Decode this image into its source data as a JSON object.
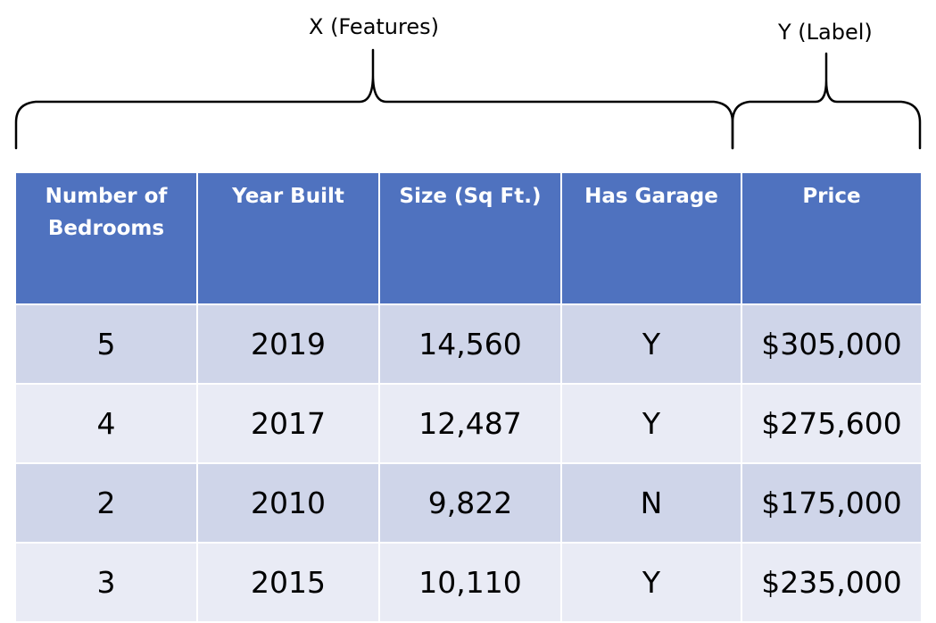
{
  "brackets": {
    "features_label": "X (Features)",
    "label_label": "Y (Label)"
  },
  "table": {
    "headers": [
      "Number of Bedrooms",
      "Year Built",
      "Size (Sq Ft.)",
      "Has Garage",
      "Price"
    ],
    "rows": [
      [
        "5",
        "2019",
        "14,560",
        "Y",
        "$305,000"
      ],
      [
        "4",
        "2017",
        "12,487",
        "Y",
        "$275,600"
      ],
      [
        "2",
        "2010",
        "9,822",
        "N",
        "$175,000"
      ],
      [
        "3",
        "2015",
        "10,110",
        "Y",
        "$235,000"
      ]
    ]
  },
  "colors": {
    "header_bg": "#4f72bf",
    "header_text": "#ffffff",
    "row_dark": "#cfd5e9",
    "row_light": "#e9ebf5"
  }
}
